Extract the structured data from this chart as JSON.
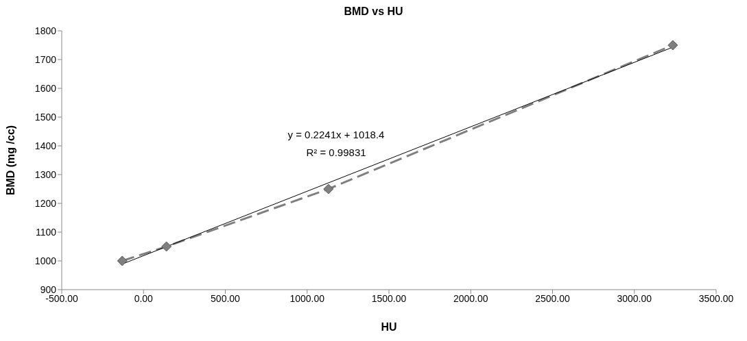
{
  "chart_data": {
    "type": "line",
    "title": "BMD vs HU",
    "xlabel": "HU",
    "ylabel": "BMD (mg /cc)",
    "series": [
      {
        "color": "#7f7f7f",
        "x": [
          -130,
          140,
          1130,
          3235
        ],
        "values": [
          1000,
          1050,
          1250,
          1750
        ],
        "marker": "diamond",
        "line_style": "dashed"
      },
      {
        "color": "#000000",
        "x": [
          -130,
          3235
        ],
        "values": [
          989,
          1743
        ],
        "marker": "none",
        "line_style": "solid"
      }
    ],
    "annotations": [
      "y = 0.2241x + 1018.4",
      "R² = 0.99831"
    ],
    "xlim": [
      -500,
      3500
    ],
    "xticks": [
      {
        "value": -500,
        "label": "-500.00"
      },
      {
        "value": 0,
        "label": "0.00"
      },
      {
        "value": 500,
        "label": "500.00"
      },
      {
        "value": 1000,
        "label": "1000.00"
      },
      {
        "value": 1500,
        "label": "1500.00"
      },
      {
        "value": 2000,
        "label": "2000.00"
      },
      {
        "value": 2500,
        "label": "2500.00"
      },
      {
        "value": 3000,
        "label": "3000.00"
      },
      {
        "value": 3500,
        "label": "3500.00"
      }
    ],
    "ylim": [
      900,
      1800
    ],
    "yticks": [
      900,
      1000,
      1100,
      1200,
      1300,
      1400,
      1500,
      1600,
      1700,
      1800
    ],
    "grid": false
  }
}
